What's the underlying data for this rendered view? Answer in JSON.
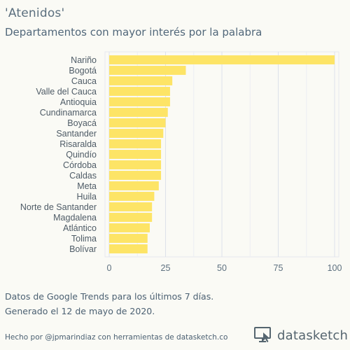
{
  "header": {
    "title": "'Atenidos'",
    "subtitle": "Departamentos con mayor interés por la palabra"
  },
  "chart_data": {
    "type": "bar",
    "orientation": "horizontal",
    "categories": [
      "Nariño",
      "Bogotá",
      "Cauca",
      "Valle del Cauca",
      "Antioquia",
      "Cundinamarca",
      "Boyacá",
      "Santander",
      "Risaralda",
      "Quindío",
      "Córdoba",
      "Caldas",
      "Meta",
      "Huila",
      "Norte de Santander",
      "Magdalena",
      "Atlántico",
      "Tolima",
      "Bolívar"
    ],
    "values": [
      100,
      34,
      28,
      27,
      27,
      26,
      25,
      24,
      23,
      23,
      23,
      23,
      22,
      20,
      19,
      19,
      18,
      17,
      17
    ],
    "xlim": [
      0,
      100
    ],
    "xticks": [
      0,
      25,
      50,
      75,
      100
    ],
    "bar_color": "#fde466",
    "grid": true,
    "title": "'Atenidos'",
    "subtitle": "Departamentos con mayor interés por la palabra"
  },
  "footer": {
    "caption_line1": "Datos de Google Trends para los últimos 7 días.",
    "caption_line2": "Generado el 12 de mayo de 2020.",
    "credit": "Hecho por @jpmarindiaz con herramientas de datasketch.co",
    "brand_name": "datasketch",
    "brand_icon": "datasketch-logo-icon"
  }
}
